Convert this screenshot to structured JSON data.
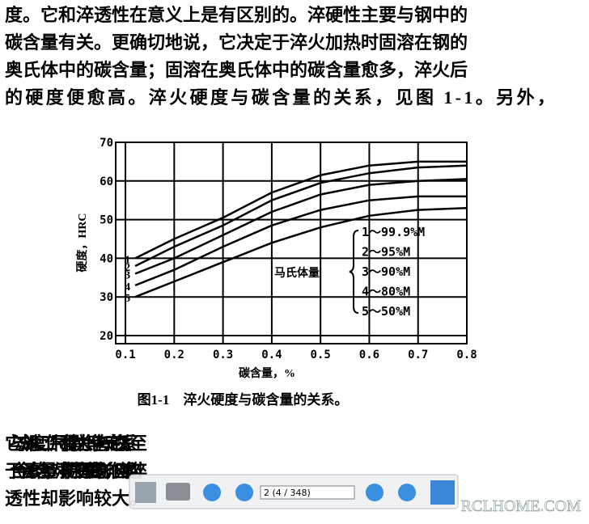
{
  "paragraphs_top": [
    "度。它和淬透性在意义上是有区别的。淬硬性主要与钢中的",
    "碳含量有关。更确切地说，它决定于淬火加热时固溶在钢的",
    "奥氏体中的碳含量；固溶在奥氏体中的碳含量愈多，淬火后",
    "的硬度便愈高。淬火硬度与碳含量的关系，见图 1-1。另外，"
  ],
  "figure": {
    "type": "line",
    "caption": "图1-1　淬火硬度与碳含量的关系。",
    "x_label": "碳含量，%",
    "y_label": "硬度，HRC",
    "legend_title": "马氏体量",
    "legend": [
      "1～99.9%M",
      "2～95%M",
      "3～90%M",
      "4～80%M",
      "5～50%M"
    ],
    "x": [
      0.12,
      0.2,
      0.3,
      0.4,
      0.5,
      0.6,
      0.7,
      0.8
    ],
    "series": [
      {
        "name": "1",
        "color": "#000000",
        "values": [
          40,
          45,
          50.5,
          57,
          61.5,
          64,
          65,
          65
        ]
      },
      {
        "name": "2",
        "color": "#000000",
        "values": [
          38,
          43,
          48.5,
          55,
          59.5,
          62,
          63.5,
          64
        ]
      },
      {
        "name": "3",
        "color": "#000000",
        "values": [
          36,
          40,
          46,
          52,
          56.5,
          59,
          60,
          60.5
        ]
      },
      {
        "name": "4",
        "color": "#000000",
        "values": [
          33,
          37,
          43,
          48.5,
          52.5,
          55,
          56,
          56
        ]
      },
      {
        "name": "5",
        "color": "#000000",
        "values": [
          30,
          34,
          39,
          44,
          48,
          51,
          52.5,
          53
        ]
      }
    ],
    "xlim": [
      0.08,
      0.8
    ],
    "ylim": [
      20,
      70
    ],
    "xticks": [
      0.1,
      0.2,
      0.3,
      0.4,
      0.5,
      0.6,
      0.7,
      0.8
    ],
    "yticks": [
      20,
      30,
      40,
      50,
      60,
      70
    ],
    "grid": true
  },
  "paragraphs_bottom": [
    "它与冷却速度、工件尺寸和晶粒大小等也有一定的关系。至",
    "于合金元素的含量，对淬硬性没有显著的影响，但对钢的淬",
    "透性却影响较大。"
  ],
  "toolbar": {
    "page_field": "2 (4 / 348)"
  },
  "watermark": "RCLHOME.COM"
}
